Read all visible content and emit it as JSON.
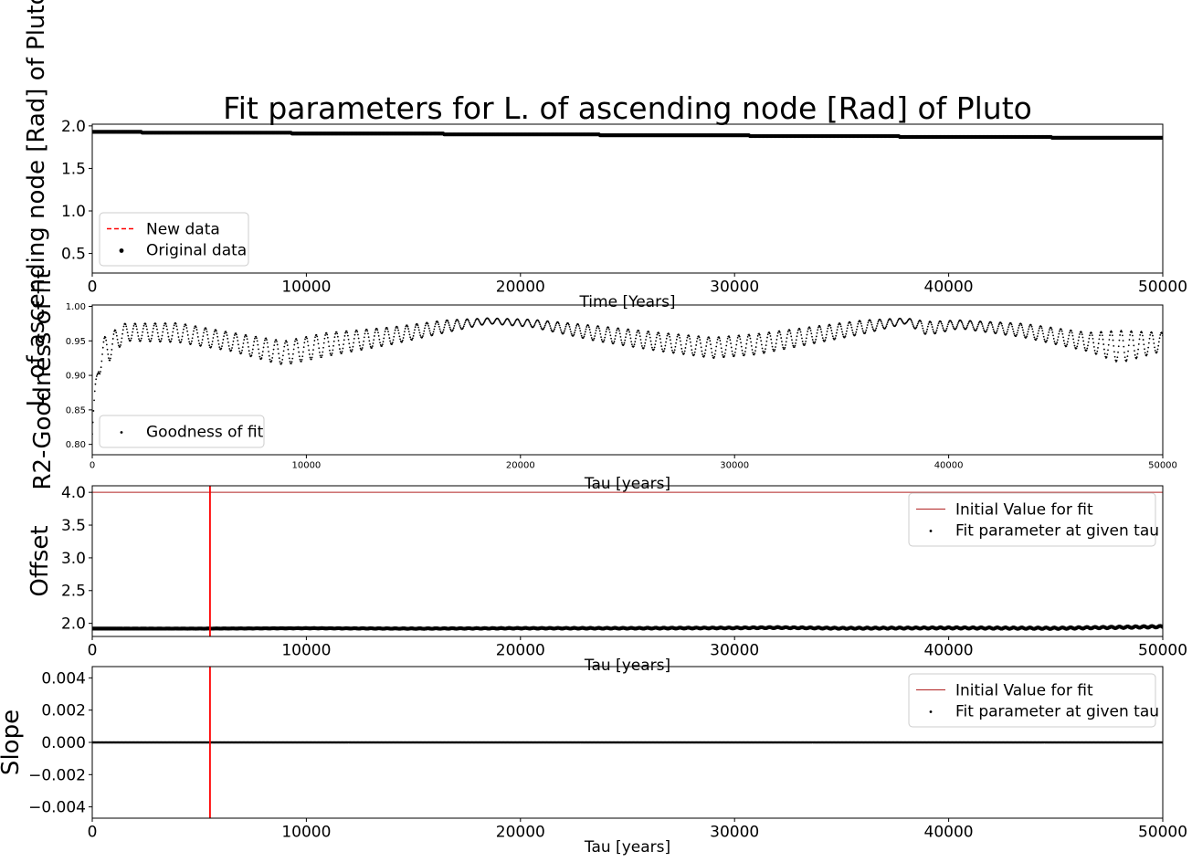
{
  "figure_title": "Fit parameters for L. of ascending node [Rad] of Pluto",
  "colors": {
    "data": "#000000",
    "reference": "#ff0000",
    "initial_value": "#b22222"
  },
  "chart_data": [
    {
      "type": "scatter",
      "title": "Fit parameters for L. of ascending node [Rad] of Pluto",
      "xlabel": "Time [Years]",
      "ylabel": "L. of ascending node [Rad] of Pluto",
      "xlim": [
        0,
        50000
      ],
      "ylim": [
        0.27,
        2.02
      ],
      "xticks": [
        "0",
        "10000",
        "20000",
        "30000",
        "40000",
        "50000"
      ],
      "yticks": [
        "0.5",
        "1.0",
        "1.5",
        "2.0"
      ],
      "grid": false,
      "legend": "lower-left",
      "series": [
        {
          "name": "New data",
          "kind": "dashed-line",
          "x": [],
          "y": []
        },
        {
          "name": "Original data",
          "kind": "scatter",
          "x": [
            0,
            2200,
            2300,
            9200,
            9300,
            16300,
            16400,
            23600,
            23700,
            30600,
            30700,
            37600,
            37700,
            44700,
            44800,
            50000
          ],
          "y": [
            1.93,
            1.93,
            1.92,
            1.92,
            1.91,
            1.91,
            1.9,
            1.9,
            1.89,
            1.89,
            1.88,
            1.88,
            1.87,
            1.87,
            1.86,
            1.86
          ]
        }
      ]
    },
    {
      "type": "scatter",
      "xlabel": "Tau [years]",
      "ylabel": "R2-Goodness of fit",
      "xlim": [
        0,
        50000
      ],
      "ylim": [
        0.785,
        1.002
      ],
      "xticks": [
        "0",
        "10000",
        "20000",
        "30000",
        "40000",
        "50000"
      ],
      "yticks": [
        "0.80",
        "0.85",
        "0.90",
        "0.95",
        "1.00"
      ],
      "grid": false,
      "legend": "lower-left",
      "series": [
        {
          "name": "Goodness of fit",
          "envelope_x": [
            0,
            300,
            1500,
            4000,
            6500,
            8500,
            9000,
            11000,
            14000,
            16500,
            18500,
            20500,
            23500,
            26500,
            29000,
            31000,
            33500,
            36000,
            38000,
            39000,
            40500,
            43500,
            46500,
            48000,
            50000
          ],
          "envelope_high": [
            0.83,
            0.95,
            0.975,
            0.976,
            0.962,
            0.952,
            0.95,
            0.962,
            0.97,
            0.98,
            0.983,
            0.981,
            0.972,
            0.962,
            0.955,
            0.96,
            0.97,
            0.98,
            0.983,
            0.978,
            0.98,
            0.975,
            0.962,
            0.965,
            0.962
          ],
          "envelope_low": [
            0.8,
            0.9,
            0.95,
            0.948,
            0.935,
            0.918,
            0.915,
            0.928,
            0.945,
            0.962,
            0.975,
            0.97,
            0.95,
            0.935,
            0.925,
            0.93,
            0.945,
            0.96,
            0.975,
            0.958,
            0.968,
            0.955,
            0.935,
            0.918,
            0.935
          ]
        }
      ]
    },
    {
      "type": "scatter",
      "xlabel": "Tau [years]",
      "ylabel": "Offset",
      "xlim": [
        0,
        50000
      ],
      "ylim": [
        1.8,
        4.1
      ],
      "xticks": [
        "0",
        "10000",
        "20000",
        "30000",
        "40000",
        "50000"
      ],
      "yticks": [
        "2.0",
        "2.5",
        "3.0",
        "3.5",
        "4.0"
      ],
      "grid": false,
      "legend": "upper-right",
      "series": [
        {
          "name": "Initial Value for fit",
          "kind": "hline",
          "y": 4.0
        },
        {
          "name": "Fit parameter at given tau",
          "kind": "scatter",
          "x": [
            0,
            5000,
            10000,
            15000,
            20000,
            25000,
            30000,
            32000,
            35000,
            40000,
            45000,
            48000,
            50000
          ],
          "y": [
            1.92,
            1.92,
            1.925,
            1.92,
            1.925,
            1.925,
            1.93,
            1.935,
            1.925,
            1.93,
            1.925,
            1.94,
            1.95
          ]
        },
        {
          "name": "",
          "kind": "vline",
          "x": 5500
        }
      ]
    },
    {
      "type": "scatter",
      "xlabel": "Tau [years]",
      "ylabel": "Slope",
      "xlim": [
        0,
        50000
      ],
      "ylim": [
        -0.0047,
        0.0047
      ],
      "xticks": [
        "0",
        "10000",
        "20000",
        "30000",
        "40000",
        "50000"
      ],
      "yticks": [
        "−0.004",
        "−0.002",
        "0.000",
        "0.002",
        "0.004"
      ],
      "grid": false,
      "legend": "upper-right",
      "series": [
        {
          "name": "Initial Value for fit",
          "kind": "hline",
          "y": 0.0
        },
        {
          "name": "Fit parameter at given tau",
          "kind": "scatter",
          "x": [
            0,
            10000,
            20000,
            30000,
            40000,
            50000
          ],
          "y": [
            0.0,
            0.0,
            0.0,
            0.0,
            0.0,
            0.0
          ]
        },
        {
          "name": "",
          "kind": "vline",
          "x": 5500
        }
      ]
    }
  ]
}
